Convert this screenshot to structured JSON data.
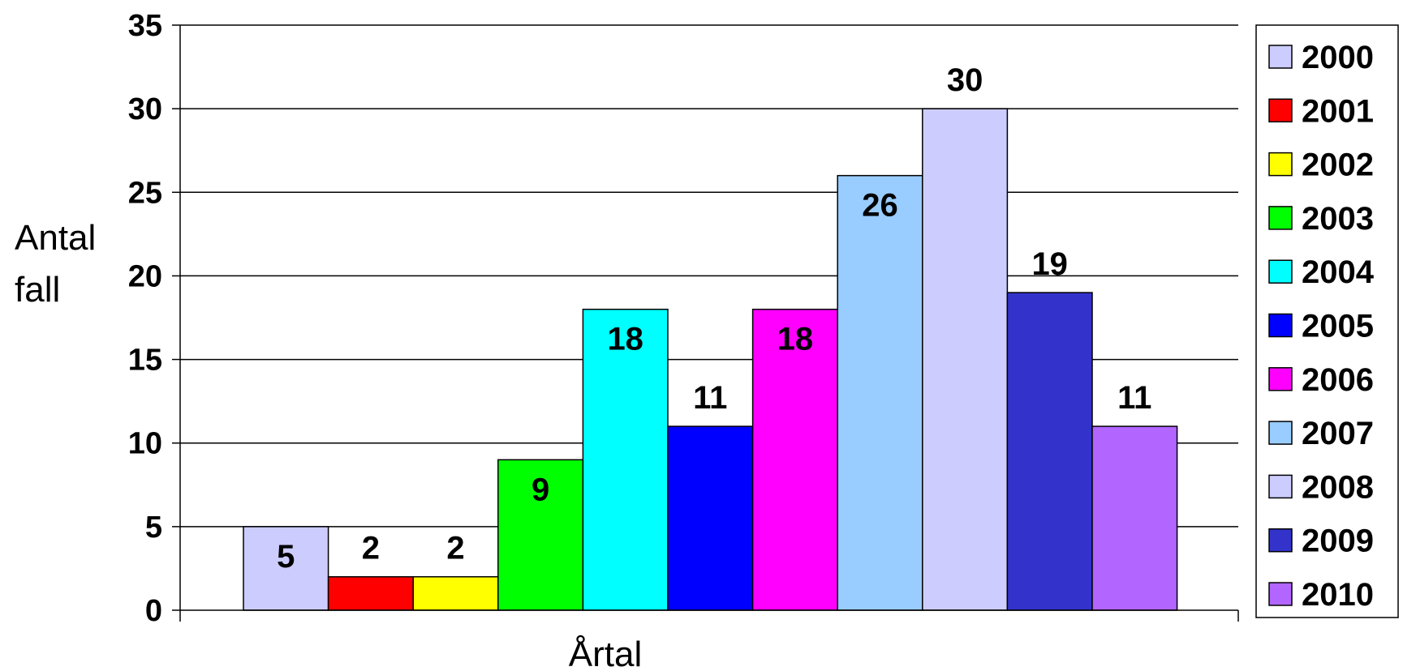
{
  "chart_data": {
    "type": "bar",
    "title": "",
    "xlabel": "Årtal",
    "ylabel_lines": [
      "Antal",
      "fall"
    ],
    "ylim": [
      0,
      35
    ],
    "yticks": [
      0,
      5,
      10,
      15,
      20,
      25,
      30,
      35
    ],
    "grid": true,
    "legend_position": "right",
    "series": [
      {
        "name": "2000",
        "value": 5,
        "color": "#CCCCFF"
      },
      {
        "name": "2001",
        "value": 2,
        "color": "#FF0000"
      },
      {
        "name": "2002",
        "value": 2,
        "color": "#FFFF00"
      },
      {
        "name": "2003",
        "value": 9,
        "color": "#00FF00"
      },
      {
        "name": "2004",
        "value": 18,
        "color": "#00FFFF"
      },
      {
        "name": "2005",
        "value": 11,
        "color": "#0000FF"
      },
      {
        "name": "2006",
        "value": 18,
        "color": "#FF00FF"
      },
      {
        "name": "2007",
        "value": 26,
        "color": "#99CCFF"
      },
      {
        "name": "2008",
        "value": 30,
        "color": "#CCCCFF"
      },
      {
        "name": "2009",
        "value": 19,
        "color": "#3333CC"
      },
      {
        "name": "2010",
        "value": 11,
        "color": "#B266FF"
      }
    ]
  }
}
